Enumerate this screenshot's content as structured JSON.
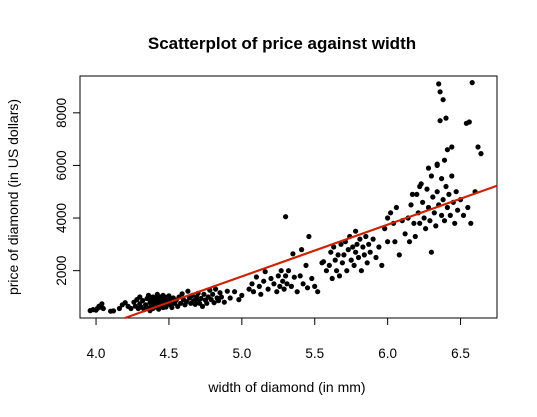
{
  "chart_data": {
    "type": "scatter",
    "title": "Scatterplot of price against width",
    "xlabel": "width of diamond (in mm)",
    "ylabel": "price of diamond (in US dollars)",
    "xlim": [
      3.89,
      6.75
    ],
    "ylim": [
      200,
      9400
    ],
    "x_ticks": [
      4.0,
      4.5,
      5.0,
      5.5,
      6.0,
      6.5
    ],
    "x_tick_labels": [
      "4.0",
      "4.5",
      "5.0",
      "5.5",
      "6.0",
      "6.5"
    ],
    "y_ticks": [
      2000,
      4000,
      6000,
      8000
    ],
    "y_tick_labels": [
      "2000",
      "4000",
      "6000",
      "8000"
    ],
    "grid": false,
    "point_color": "#000000",
    "fit_line": {
      "slope": 1970,
      "intercept": -8070,
      "color": "#cc2200"
    },
    "points": [
      [
        3.96,
        480
      ],
      [
        3.98,
        520
      ],
      [
        4.0,
        500
      ],
      [
        4.01,
        570
      ],
      [
        4.02,
        650
      ],
      [
        4.03,
        610
      ],
      [
        4.04,
        740
      ],
      [
        4.05,
        560
      ],
      [
        4.1,
        460
      ],
      [
        4.12,
        470
      ],
      [
        4.16,
        560
      ],
      [
        4.18,
        700
      ],
      [
        4.2,
        780
      ],
      [
        4.22,
        640
      ],
      [
        4.24,
        560
      ],
      [
        4.26,
        800
      ],
      [
        4.27,
        650
      ],
      [
        4.28,
        900
      ],
      [
        4.29,
        560
      ],
      [
        4.3,
        1000
      ],
      [
        4.3,
        740
      ],
      [
        4.31,
        610
      ],
      [
        4.32,
        860
      ],
      [
        4.33,
        520
      ],
      [
        4.34,
        700
      ],
      [
        4.35,
        940
      ],
      [
        4.35,
        600
      ],
      [
        4.36,
        1060
      ],
      [
        4.37,
        780
      ],
      [
        4.37,
        480
      ],
      [
        4.38,
        900
      ],
      [
        4.38,
        660
      ],
      [
        4.39,
        1000
      ],
      [
        4.39,
        560
      ],
      [
        4.4,
        840
      ],
      [
        4.4,
        720
      ],
      [
        4.41,
        620
      ],
      [
        4.41,
        960
      ],
      [
        4.42,
        1100
      ],
      [
        4.42,
        760
      ],
      [
        4.43,
        880
      ],
      [
        4.43,
        540
      ],
      [
        4.44,
        1000
      ],
      [
        4.44,
        680
      ],
      [
        4.45,
        800
      ],
      [
        4.45,
        920
      ],
      [
        4.46,
        600
      ],
      [
        4.46,
        1060
      ],
      [
        4.47,
        720
      ],
      [
        4.47,
        840
      ],
      [
        4.48,
        980
      ],
      [
        4.48,
        620
      ],
      [
        4.49,
        760
      ],
      [
        4.5,
        900
      ],
      [
        4.5,
        1040
      ],
      [
        4.51,
        700
      ],
      [
        4.52,
        820
      ],
      [
        4.52,
        600
      ],
      [
        4.53,
        960
      ],
      [
        4.54,
        760
      ],
      [
        4.55,
        880
      ],
      [
        4.56,
        640
      ],
      [
        4.57,
        1000
      ],
      [
        4.58,
        760
      ],
      [
        4.59,
        1120
      ],
      [
        4.6,
        900
      ],
      [
        4.61,
        700
      ],
      [
        4.62,
        820
      ],
      [
        4.63,
        1220
      ],
      [
        4.64,
        960
      ],
      [
        4.65,
        760
      ],
      [
        4.66,
        1060
      ],
      [
        4.67,
        860
      ],
      [
        4.68,
        720
      ],
      [
        4.69,
        1000
      ],
      [
        4.7,
        860
      ],
      [
        4.7,
        1140
      ],
      [
        4.71,
        760
      ],
      [
        4.72,
        940
      ],
      [
        4.73,
        640
      ],
      [
        4.74,
        1100
      ],
      [
        4.75,
        880
      ],
      [
        4.76,
        760
      ],
      [
        4.77,
        1000
      ],
      [
        4.78,
        1260
      ],
      [
        4.79,
        900
      ],
      [
        4.8,
        1100
      ],
      [
        4.81,
        780
      ],
      [
        4.82,
        1300
      ],
      [
        4.83,
        960
      ],
      [
        4.84,
        860
      ],
      [
        4.85,
        1160
      ],
      [
        4.86,
        1000
      ],
      [
        4.88,
        800
      ],
      [
        4.9,
        1220
      ],
      [
        4.92,
        960
      ],
      [
        4.95,
        1200
      ],
      [
        4.98,
        900
      ],
      [
        5.0,
        1060
      ],
      [
        5.05,
        1300
      ],
      [
        5.07,
        1500
      ],
      [
        5.08,
        1200
      ],
      [
        5.1,
        1760
      ],
      [
        5.12,
        1400
      ],
      [
        5.13,
        1100
      ],
      [
        5.15,
        1600
      ],
      [
        5.16,
        1960
      ],
      [
        5.18,
        1300
      ],
      [
        5.2,
        1700
      ],
      [
        5.22,
        1500
      ],
      [
        5.24,
        1200
      ],
      [
        5.25,
        1800
      ],
      [
        5.26,
        1400
      ],
      [
        5.27,
        2000
      ],
      [
        5.28,
        1600
      ],
      [
        5.29,
        1300
      ],
      [
        5.3,
        1800
      ],
      [
        5.3,
        4050
      ],
      [
        5.31,
        1500
      ],
      [
        5.32,
        2000
      ],
      [
        5.34,
        1400
      ],
      [
        5.35,
        2640
      ],
      [
        5.36,
        1750
      ],
      [
        5.38,
        1200
      ],
      [
        5.4,
        1800
      ],
      [
        5.41,
        2800
      ],
      [
        5.42,
        1500
      ],
      [
        5.44,
        2200
      ],
      [
        5.45,
        1350
      ],
      [
        5.46,
        3300
      ],
      [
        5.48,
        1700
      ],
      [
        5.5,
        1400
      ],
      [
        5.52,
        1200
      ],
      [
        5.55,
        2300
      ],
      [
        5.56,
        2340
      ],
      [
        5.58,
        2000
      ],
      [
        5.6,
        2200
      ],
      [
        5.61,
        2700
      ],
      [
        5.62,
        1700
      ],
      [
        5.63,
        2900
      ],
      [
        5.64,
        2400
      ],
      [
        5.65,
        2000
      ],
      [
        5.66,
        2600
      ],
      [
        5.67,
        1800
      ],
      [
        5.68,
        3000
      ],
      [
        5.69,
        2300
      ],
      [
        5.7,
        2600
      ],
      [
        5.71,
        3100
      ],
      [
        5.72,
        2000
      ],
      [
        5.73,
        2800
      ],
      [
        5.74,
        3300
      ],
      [
        5.75,
        2400
      ],
      [
        5.76,
        2900
      ],
      [
        5.77,
        2200
      ],
      [
        5.78,
        3500
      ],
      [
        5.78,
        2700
      ],
      [
        5.79,
        3000
      ],
      [
        5.8,
        2500
      ],
      [
        5.81,
        3200
      ],
      [
        5.82,
        2000
      ],
      [
        5.83,
        2900
      ],
      [
        5.84,
        2600
      ],
      [
        5.85,
        3300
      ],
      [
        5.86,
        2300
      ],
      [
        5.87,
        3000
      ],
      [
        5.88,
        2700
      ],
      [
        5.9,
        3200
      ],
      [
        5.92,
        2500
      ],
      [
        5.94,
        2900
      ],
      [
        5.96,
        2200
      ],
      [
        5.98,
        3600
      ],
      [
        6.0,
        3100
      ],
      [
        6.0,
        4000
      ],
      [
        6.02,
        4200
      ],
      [
        6.04,
        3800
      ],
      [
        6.05,
        3100
      ],
      [
        6.06,
        4400
      ],
      [
        6.08,
        2600
      ],
      [
        6.1,
        3900
      ],
      [
        6.12,
        3400
      ],
      [
        6.14,
        4000
      ],
      [
        6.15,
        3100
      ],
      [
        6.16,
        4500
      ],
      [
        6.18,
        3800
      ],
      [
        6.19,
        3300
      ],
      [
        6.2,
        4900
      ],
      [
        6.21,
        4200
      ],
      [
        6.22,
        3800
      ],
      [
        6.23,
        5300
      ],
      [
        6.24,
        4600
      ],
      [
        6.25,
        4000
      ],
      [
        6.26,
        3600
      ],
      [
        6.27,
        5100
      ],
      [
        6.28,
        4400
      ],
      [
        6.29,
        3900
      ],
      [
        6.3,
        5600
      ],
      [
        6.3,
        2700
      ],
      [
        6.31,
        4800
      ],
      [
        6.32,
        4200
      ],
      [
        6.33,
        3700
      ],
      [
        6.34,
        6000
      ],
      [
        6.34,
        5000
      ],
      [
        6.35,
        9100
      ],
      [
        6.35,
        4500
      ],
      [
        6.36,
        7700
      ],
      [
        6.36,
        8800
      ],
      [
        6.37,
        4100
      ],
      [
        6.37,
        5500
      ],
      [
        6.38,
        8500
      ],
      [
        6.38,
        4700
      ],
      [
        6.39,
        6200
      ],
      [
        6.39,
        3900
      ],
      [
        6.4,
        7800
      ],
      [
        6.4,
        5200
      ],
      [
        6.41,
        4400
      ],
      [
        6.41,
        6600
      ],
      [
        6.42,
        4900
      ],
      [
        6.43,
        4100
      ],
      [
        6.44,
        5600
      ],
      [
        6.45,
        4600
      ],
      [
        6.46,
        3800
      ],
      [
        6.47,
        5000
      ],
      [
        6.48,
        4300
      ],
      [
        6.5,
        4700
      ],
      [
        6.52,
        4100
      ],
      [
        6.54,
        7600
      ],
      [
        6.55,
        4400
      ],
      [
        6.56,
        7650
      ],
      [
        6.57,
        3800
      ],
      [
        6.58,
        9150
      ],
      [
        6.6,
        5000
      ],
      [
        6.62,
        6700
      ],
      [
        6.64,
        6450
      ],
      [
        6.34,
        6050
      ],
      [
        6.44,
        6700
      ],
      [
        6.28,
        5900
      ],
      [
        6.22,
        5200
      ],
      [
        6.17,
        4900
      ]
    ]
  }
}
